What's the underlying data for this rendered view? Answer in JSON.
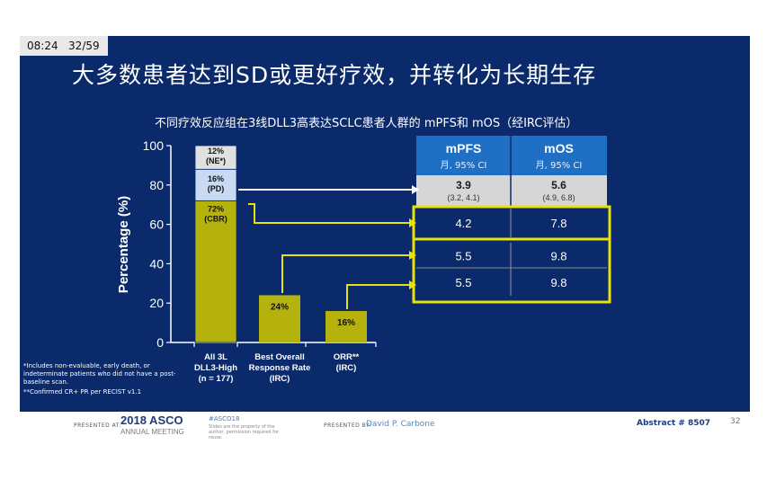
{
  "topbar": {
    "time": "08:24",
    "page": "32/59"
  },
  "slide": {
    "title": "大多数患者达到SD或更好疗效，并转化为长期生存",
    "subtitle": "不同疗效反应组在3线DLL3高表达SCLC患者人群的 mPFS和 mOS（经IRC评估）"
  },
  "chart_data": {
    "type": "bar",
    "ylabel": "Percentage (%)",
    "ylim": [
      0,
      100
    ],
    "yticks": [
      0,
      20,
      40,
      60,
      80,
      100
    ],
    "categories": [
      [
        "All 3L",
        "DLL3-High",
        "(n = 177)"
      ],
      [
        "Best Overall",
        "Response Rate",
        "(IRC)"
      ],
      [
        "ORR**",
        "(IRC)"
      ]
    ],
    "stacked_bar": [
      {
        "value": 72,
        "label": [
          "72%",
          "(CBR)"
        ],
        "color": "#b5b20e"
      },
      {
        "value": 16,
        "label": [
          "16%",
          "(PD)"
        ],
        "color": "#c9dbf2"
      },
      {
        "value": 12,
        "label": [
          "12%",
          "(NE*)"
        ],
        "color": "#e1e1e1"
      }
    ],
    "bars": [
      {
        "category_index": 1,
        "value": 24,
        "label": "24%",
        "color": "#b5b20e"
      },
      {
        "category_index": 2,
        "value": 16,
        "label": "16%",
        "color": "#b5b20e"
      }
    ]
  },
  "table": {
    "headers": [
      {
        "title": "mPFS",
        "sub": "月, 95% CI"
      },
      {
        "title": "mOS",
        "sub": "月, 95% CI"
      }
    ],
    "rows": [
      {
        "cells": [
          {
            "main": "3.9",
            "ci": "(3.2, 4.1)"
          },
          {
            "main": "5.6",
            "ci": "(4.9, 6.8)"
          }
        ],
        "style": "grey"
      },
      {
        "cells": [
          {
            "main": "4.2"
          },
          {
            "main": "7.8"
          }
        ],
        "style": "highlight"
      },
      {
        "cells": [
          {
            "main": "5.5"
          },
          {
            "main": "9.8"
          }
        ],
        "style": "highlight"
      },
      {
        "cells": [
          {
            "main": "5.5"
          },
          {
            "main": "9.8"
          }
        ],
        "style": "highlight"
      }
    ]
  },
  "notes": {
    "line1": "*Includes non-evaluable, early death, or",
    "line2": "indeterminate patients who did not have a post-",
    "line3": "baseline scan.",
    "line4": "**Confirmed CR+ PR per RECIST v1.1"
  },
  "footer": {
    "presented_at": "PRESENTED AT:",
    "asco_year": "2018 ASCO",
    "asco_sub": "ANNUAL MEETING",
    "hashtag": "#ASCO18",
    "disclaimer": "Slides are the property of the author, permission required for reuse.",
    "presented_by": "PRESENTED BY:",
    "presenter": "David P. Carbone",
    "abstract": "Abstract # 8507",
    "page_number": "32"
  },
  "colors": {
    "background": "#0a2a6b",
    "bar": "#b5b20e",
    "highlight_border": "#e8e20a",
    "table_header": "#1f6fc5"
  }
}
